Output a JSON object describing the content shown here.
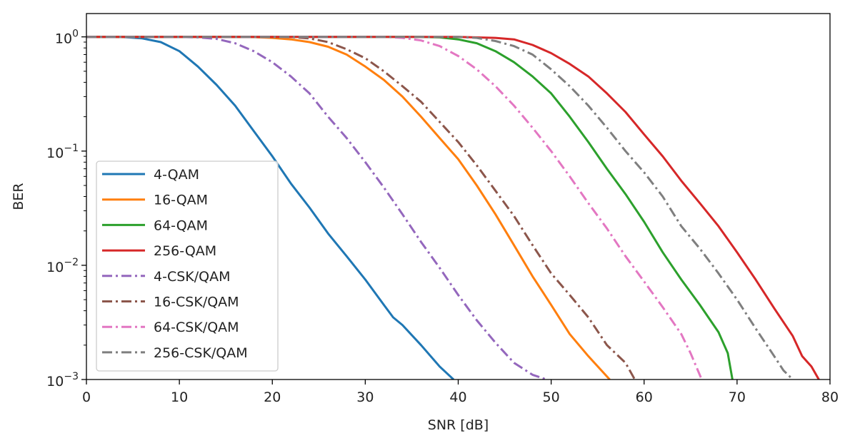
{
  "chart_data": {
    "type": "line",
    "xlabel": "SNR [dB]",
    "ylabel": "BER",
    "xlim": [
      0,
      80
    ],
    "ylim": [
      0.001,
      1.6
    ],
    "yscale": "log",
    "grid": false,
    "legend_position": "lower-left",
    "x_ticks": [
      {
        "value": 0,
        "label": "0"
      },
      {
        "value": 10,
        "label": "10"
      },
      {
        "value": 20,
        "label": "20"
      },
      {
        "value": 30,
        "label": "30"
      },
      {
        "value": 40,
        "label": "40"
      },
      {
        "value": 50,
        "label": "50"
      },
      {
        "value": 60,
        "label": "60"
      },
      {
        "value": 70,
        "label": "70"
      },
      {
        "value": 80,
        "label": "80"
      }
    ],
    "y_ticks": [
      {
        "value": 1,
        "base": "10",
        "exp": "0"
      },
      {
        "value": 0.1,
        "base": "10",
        "exp": "−1"
      },
      {
        "value": 0.01,
        "base": "10",
        "exp": "−2"
      },
      {
        "value": 0.001,
        "base": "10",
        "exp": "−3"
      }
    ],
    "series": [
      {
        "name": "4-QAM",
        "color": "#1f77b4",
        "style": "solid",
        "points": [
          [
            0,
            1
          ],
          [
            4,
            0.995
          ],
          [
            6,
            0.97
          ],
          [
            8,
            0.9
          ],
          [
            10,
            0.75
          ],
          [
            12,
            0.55
          ],
          [
            14,
            0.38
          ],
          [
            16,
            0.25
          ],
          [
            18,
            0.15
          ],
          [
            20,
            0.09
          ],
          [
            22,
            0.052
          ],
          [
            24,
            0.032
          ],
          [
            26,
            0.019
          ],
          [
            28,
            0.012
          ],
          [
            30,
            0.0075
          ],
          [
            32,
            0.0045
          ],
          [
            33,
            0.0035
          ],
          [
            34,
            0.003
          ],
          [
            36,
            0.002
          ],
          [
            38,
            0.0013
          ],
          [
            39.5,
            0.001
          ]
        ]
      },
      {
        "name": "16-QAM",
        "color": "#ff7f0e",
        "style": "solid",
        "points": [
          [
            0,
            1
          ],
          [
            16,
            1
          ],
          [
            18,
            0.995
          ],
          [
            20,
            0.98
          ],
          [
            22,
            0.95
          ],
          [
            24,
            0.9
          ],
          [
            26,
            0.82
          ],
          [
            28,
            0.7
          ],
          [
            30,
            0.55
          ],
          [
            32,
            0.42
          ],
          [
            34,
            0.3
          ],
          [
            36,
            0.2
          ],
          [
            38,
            0.13
          ],
          [
            40,
            0.085
          ],
          [
            42,
            0.05
          ],
          [
            44,
            0.028
          ],
          [
            46,
            0.015
          ],
          [
            48,
            0.008
          ],
          [
            50,
            0.0045
          ],
          [
            52,
            0.0025
          ],
          [
            54,
            0.0016
          ],
          [
            56.3,
            0.001
          ]
        ]
      },
      {
        "name": "64-QAM",
        "color": "#2ca02c",
        "style": "solid",
        "points": [
          [
            0,
            1
          ],
          [
            36,
            1
          ],
          [
            38,
            0.99
          ],
          [
            40,
            0.95
          ],
          [
            42,
            0.88
          ],
          [
            44,
            0.75
          ],
          [
            46,
            0.6
          ],
          [
            48,
            0.45
          ],
          [
            50,
            0.32
          ],
          [
            52,
            0.2
          ],
          [
            54,
            0.12
          ],
          [
            56,
            0.07
          ],
          [
            58,
            0.042
          ],
          [
            60,
            0.024
          ],
          [
            62,
            0.013
          ],
          [
            64,
            0.0075
          ],
          [
            66,
            0.0045
          ],
          [
            68,
            0.0026
          ],
          [
            69,
            0.0017
          ],
          [
            69.5,
            0.001
          ]
        ]
      },
      {
        "name": "256-QAM",
        "color": "#d62728",
        "style": "solid",
        "points": [
          [
            0,
            1
          ],
          [
            40,
            1
          ],
          [
            44,
            0.98
          ],
          [
            46,
            0.95
          ],
          [
            48,
            0.85
          ],
          [
            50,
            0.72
          ],
          [
            52,
            0.58
          ],
          [
            54,
            0.45
          ],
          [
            56,
            0.32
          ],
          [
            58,
            0.22
          ],
          [
            60,
            0.14
          ],
          [
            62,
            0.09
          ],
          [
            64,
            0.055
          ],
          [
            66,
            0.035
          ],
          [
            68,
            0.022
          ],
          [
            70,
            0.013
          ],
          [
            72,
            0.0075
          ],
          [
            74,
            0.0042
          ],
          [
            76,
            0.0024
          ],
          [
            77,
            0.0016
          ],
          [
            78,
            0.0013
          ],
          [
            78.8,
            0.001
          ]
        ]
      },
      {
        "name": "4-CSK/QAM",
        "color": "#9467bd",
        "style": "dashdot",
        "points": [
          [
            0,
            1
          ],
          [
            10,
            1
          ],
          [
            12,
            0.99
          ],
          [
            14,
            0.96
          ],
          [
            16,
            0.88
          ],
          [
            18,
            0.75
          ],
          [
            20,
            0.6
          ],
          [
            22,
            0.45
          ],
          [
            24,
            0.32
          ],
          [
            26,
            0.2
          ],
          [
            28,
            0.13
          ],
          [
            30,
            0.08
          ],
          [
            32,
            0.048
          ],
          [
            34,
            0.028
          ],
          [
            36,
            0.016
          ],
          [
            38,
            0.0095
          ],
          [
            40,
            0.0055
          ],
          [
            42,
            0.0033
          ],
          [
            44,
            0.0021
          ],
          [
            46,
            0.0014
          ],
          [
            48,
            0.0011
          ],
          [
            49.5,
            0.001
          ]
        ]
      },
      {
        "name": "16-CSK/QAM",
        "color": "#8c564b",
        "style": "dashdot",
        "points": [
          [
            0,
            1
          ],
          [
            20,
            1
          ],
          [
            22,
            0.995
          ],
          [
            24,
            0.97
          ],
          [
            26,
            0.9
          ],
          [
            28,
            0.78
          ],
          [
            30,
            0.65
          ],
          [
            32,
            0.5
          ],
          [
            34,
            0.37
          ],
          [
            36,
            0.27
          ],
          [
            38,
            0.18
          ],
          [
            40,
            0.12
          ],
          [
            42,
            0.075
          ],
          [
            44,
            0.045
          ],
          [
            46,
            0.027
          ],
          [
            48,
            0.015
          ],
          [
            50,
            0.0085
          ],
          [
            52,
            0.0055
          ],
          [
            54,
            0.0035
          ],
          [
            56,
            0.002
          ],
          [
            58,
            0.0014
          ],
          [
            59,
            0.001
          ]
        ]
      },
      {
        "name": "64-CSK/QAM",
        "color": "#e377c2",
        "style": "dashdot",
        "points": [
          [
            0,
            1
          ],
          [
            32,
            1
          ],
          [
            34,
            0.98
          ],
          [
            36,
            0.93
          ],
          [
            38,
            0.83
          ],
          [
            40,
            0.68
          ],
          [
            42,
            0.52
          ],
          [
            44,
            0.37
          ],
          [
            46,
            0.25
          ],
          [
            48,
            0.16
          ],
          [
            50,
            0.1
          ],
          [
            52,
            0.06
          ],
          [
            54,
            0.035
          ],
          [
            56,
            0.021
          ],
          [
            58,
            0.012
          ],
          [
            60,
            0.0072
          ],
          [
            62,
            0.0043
          ],
          [
            64,
            0.0025
          ],
          [
            65,
            0.0017
          ],
          [
            66.2,
            0.001
          ]
        ]
      },
      {
        "name": "256-CSK/QAM",
        "color": "#7f7f7f",
        "style": "dashdot",
        "points": [
          [
            0,
            1
          ],
          [
            40,
            1
          ],
          [
            42,
            0.98
          ],
          [
            44,
            0.92
          ],
          [
            46,
            0.83
          ],
          [
            48,
            0.7
          ],
          [
            50,
            0.52
          ],
          [
            52,
            0.37
          ],
          [
            54,
            0.25
          ],
          [
            56,
            0.16
          ],
          [
            58,
            0.1
          ],
          [
            60,
            0.065
          ],
          [
            62,
            0.04
          ],
          [
            64,
            0.022
          ],
          [
            66,
            0.014
          ],
          [
            68,
            0.0085
          ],
          [
            70,
            0.005
          ],
          [
            72,
            0.0028
          ],
          [
            74,
            0.0016
          ],
          [
            75,
            0.0012
          ],
          [
            76,
            0.001
          ]
        ]
      }
    ]
  }
}
